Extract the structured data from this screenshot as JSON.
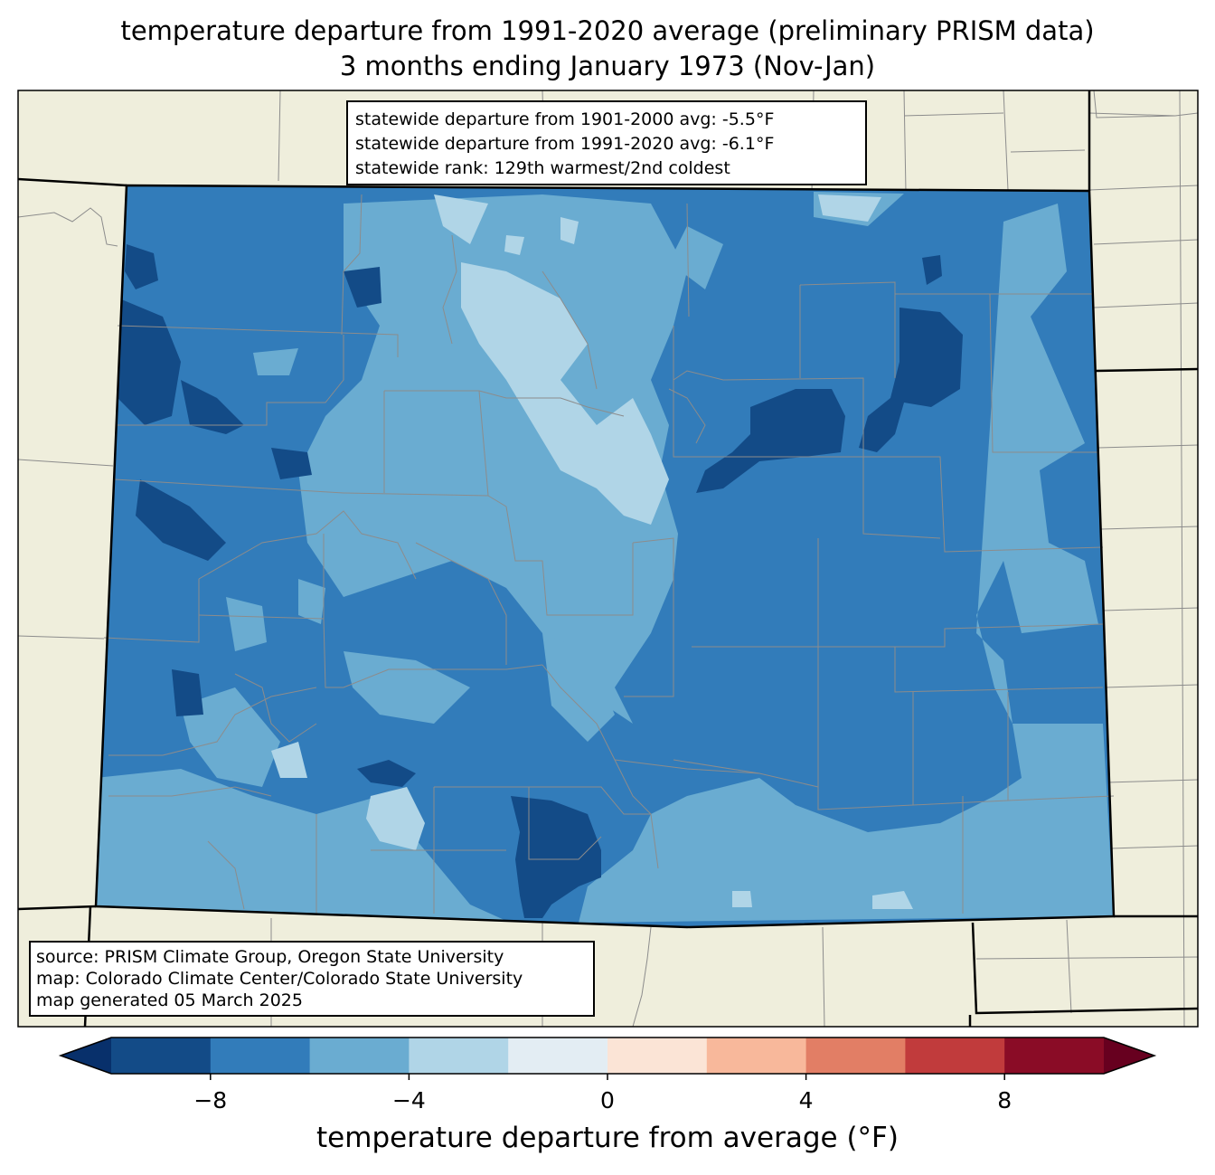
{
  "title": {
    "line1": "temperature departure from 1991-2020 average (preliminary PRISM data)",
    "line2": "3 months ending January 1973 (Nov-Jan)"
  },
  "stats": {
    "line1": "statewide departure from 1901-2000 avg: -5.5°F",
    "line2": "statewide departure from 1991-2020 avg: -6.1°F",
    "line3": "statewide rank: 129th warmest/2nd coldest"
  },
  "source": {
    "line1": "source: PRISM Climate Group, Oregon State University",
    "line2": "map: Colorado Climate Center/Colorado State University",
    "line3": "map generated 05 March 2025"
  },
  "colorbar": {
    "label": "temperature departure from average (°F)",
    "min": -10,
    "max": 10,
    "bounds": [
      -10,
      -8,
      -6,
      -4,
      -2,
      0,
      2,
      4,
      6,
      8,
      10
    ],
    "colors": [
      "#134b87",
      "#327cba",
      "#6aacd1",
      "#b0d5e7",
      "#e3edf3",
      "#fbe4d6",
      "#f8b89b",
      "#e27e65",
      "#c13b3c",
      "#8a0c26"
    ],
    "under_color": "#08306b",
    "over_color": "#67001f",
    "ticks": [
      {
        "value": -8,
        "label": "−8"
      },
      {
        "value": -4,
        "label": "−4"
      },
      {
        "value": 0,
        "label": "0"
      },
      {
        "value": 4,
        "label": "4"
      },
      {
        "value": 8,
        "label": "8"
      }
    ]
  },
  "map_colors": {
    "land_background": "#efeedc",
    "state_base": "#327cba",
    "county_lines": "#8c8c8c",
    "state_lines": "#000000"
  }
}
